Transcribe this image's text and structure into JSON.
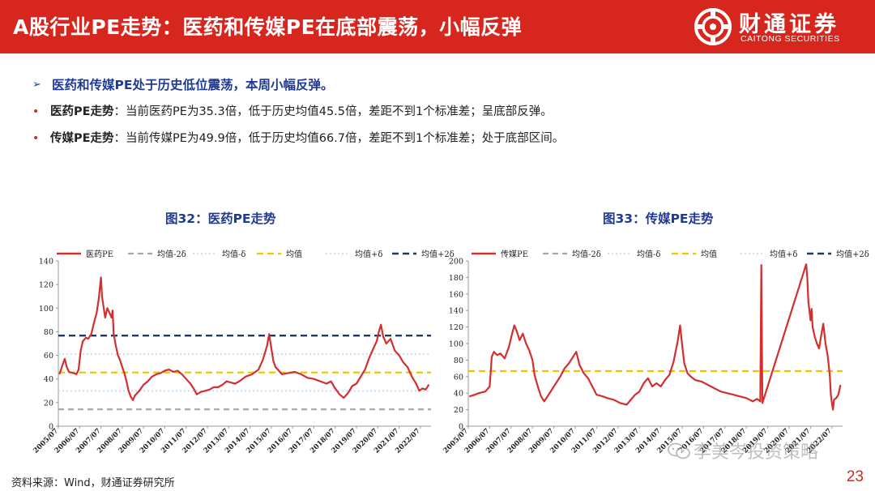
{
  "header": {
    "title": "A股行业PE走势：医药和传媒PE在底部震荡，小幅反弹",
    "logo_cn": "财通证券",
    "logo_en": "CAITONG SECURITIES"
  },
  "bullets": {
    "main": "医药和传媒PE处于历史低位震荡，本周小幅反弹。",
    "items": [
      {
        "keyword": "医药PE走势",
        "text": "：当前医药PE为35.3倍，低于历史均值45.5倍，差距不到1个标准差；呈底部反弹。"
      },
      {
        "keyword": "传媒PE走势",
        "text": "：当前传媒PE为49.9倍，低于历史均值66.7倍，差距不到1个标准差；处于底部区间。"
      }
    ]
  },
  "footer": {
    "source": "资料来源：Wind，财通证券研究所",
    "page": "23"
  },
  "watermark": "李美岑投资策略",
  "colors": {
    "brand_red": "#d7261e",
    "title_blue": "#1f3a93",
    "series": "#d32f2f",
    "minus2": "#a6a6a6",
    "minus1": "#bdd7ee",
    "mean": "#f2c200",
    "plus1": "#bdd7ee",
    "plus2": "#1f3864"
  },
  "chart_data": [
    {
      "type": "line",
      "title": "图32：医药PE走势",
      "legend": [
        "医药PE",
        "均值-2δ",
        "均值-δ",
        "均值",
        "均值+δ",
        "均值+2δ"
      ],
      "legend_position": "top",
      "ylim": [
        0,
        140
      ],
      "yticks": [
        0,
        20,
        40,
        60,
        80,
        100,
        120,
        140
      ],
      "xticks": [
        "2005/07",
        "2006/07",
        "2007/07",
        "2008/07",
        "2009/07",
        "2010/07",
        "2011/07",
        "2012/07",
        "2013/07",
        "2014/07",
        "2015/07",
        "2016/07",
        "2017/07",
        "2018/07",
        "2019/07",
        "2020/07",
        "2021/07",
        "2022/07"
      ],
      "xlim": [
        2005.5,
        2023.0
      ],
      "bands": {
        "mean_minus_2sd": 14.3,
        "mean_minus_sd": 29.9,
        "mean": 45.5,
        "mean_plus_sd": 61.1,
        "mean_plus_2sd": 76.7
      },
      "series": [
        {
          "name": "医药PE",
          "points": [
            [
              2005.55,
              44
            ],
            [
              2005.7,
              52
            ],
            [
              2005.8,
              57
            ],
            [
              2005.9,
              50
            ],
            [
              2006.0,
              46
            ],
            [
              2006.2,
              45
            ],
            [
              2006.35,
              44
            ],
            [
              2006.45,
              48
            ],
            [
              2006.55,
              64
            ],
            [
              2006.65,
              72
            ],
            [
              2006.8,
              75
            ],
            [
              2006.9,
              74
            ],
            [
              2007.05,
              78
            ],
            [
              2007.15,
              86
            ],
            [
              2007.3,
              96
            ],
            [
              2007.4,
              108
            ],
            [
              2007.5,
              126
            ],
            [
              2007.55,
              110
            ],
            [
              2007.6,
              104
            ],
            [
              2007.7,
              92
            ],
            [
              2007.8,
              100
            ],
            [
              2007.9,
              96
            ],
            [
              2008.0,
              92
            ],
            [
              2008.05,
              98
            ],
            [
              2008.1,
              78
            ],
            [
              2008.2,
              68
            ],
            [
              2008.3,
              60
            ],
            [
              2008.4,
              56
            ],
            [
              2008.5,
              50
            ],
            [
              2008.6,
              45
            ],
            [
              2008.7,
              38
            ],
            [
              2008.8,
              30
            ],
            [
              2008.9,
              25
            ],
            [
              2009.0,
              22
            ],
            [
              2009.1,
              26
            ],
            [
              2009.3,
              30
            ],
            [
              2009.5,
              35
            ],
            [
              2009.7,
              38
            ],
            [
              2009.9,
              42
            ],
            [
              2010.1,
              44
            ],
            [
              2010.3,
              45
            ],
            [
              2010.5,
              47
            ],
            [
              2010.7,
              48
            ],
            [
              2010.9,
              46
            ],
            [
              2011.1,
              47
            ],
            [
              2011.3,
              44
            ],
            [
              2011.5,
              40
            ],
            [
              2011.7,
              36
            ],
            [
              2011.85,
              32
            ],
            [
              2012.0,
              27
            ],
            [
              2012.2,
              29
            ],
            [
              2012.4,
              30
            ],
            [
              2012.6,
              31
            ],
            [
              2012.8,
              33
            ],
            [
              2013.0,
              33
            ],
            [
              2013.2,
              35
            ],
            [
              2013.4,
              38
            ],
            [
              2013.6,
              37
            ],
            [
              2013.8,
              36
            ],
            [
              2014.0,
              38
            ],
            [
              2014.3,
              42
            ],
            [
              2014.6,
              44
            ],
            [
              2014.9,
              48
            ],
            [
              2015.1,
              56
            ],
            [
              2015.3,
              68
            ],
            [
              2015.4,
              78
            ],
            [
              2015.5,
              66
            ],
            [
              2015.6,
              55
            ],
            [
              2015.7,
              50
            ],
            [
              2015.85,
              47
            ],
            [
              2016.0,
              44
            ],
            [
              2016.3,
              45
            ],
            [
              2016.6,
              46
            ],
            [
              2016.9,
              44
            ],
            [
              2017.2,
              41
            ],
            [
              2017.5,
              40
            ],
            [
              2017.8,
              38
            ],
            [
              2018.1,
              36
            ],
            [
              2018.3,
              38
            ],
            [
              2018.5,
              32
            ],
            [
              2018.7,
              27
            ],
            [
              2018.9,
              24
            ],
            [
              2019.1,
              28
            ],
            [
              2019.3,
              34
            ],
            [
              2019.5,
              36
            ],
            [
              2019.7,
              42
            ],
            [
              2019.9,
              48
            ],
            [
              2020.1,
              58
            ],
            [
              2020.3,
              66
            ],
            [
              2020.45,
              72
            ],
            [
              2020.55,
              80
            ],
            [
              2020.65,
              86
            ],
            [
              2020.75,
              76
            ],
            [
              2020.9,
              70
            ],
            [
              2021.1,
              74
            ],
            [
              2021.3,
              64
            ],
            [
              2021.5,
              60
            ],
            [
              2021.7,
              54
            ],
            [
              2021.9,
              50
            ],
            [
              2022.1,
              42
            ],
            [
              2022.3,
              36
            ],
            [
              2022.45,
              30
            ],
            [
              2022.6,
              32
            ],
            [
              2022.75,
              31
            ],
            [
              2022.9,
              35.3
            ]
          ]
        }
      ]
    },
    {
      "type": "line",
      "title": "图33：传媒PE走势",
      "legend": [
        "传媒PE",
        "均值-2δ",
        "均值-δ",
        "均值",
        "均值+δ",
        "均值+2δ"
      ],
      "legend_position": "top",
      "ylim": [
        0,
        200
      ],
      "yticks": [
        0,
        20,
        40,
        60,
        80,
        100,
        120,
        140,
        160,
        180,
        200
      ],
      "xticks": [
        "2005/07",
        "2006/07",
        "2007/07",
        "2008/07",
        "2009/07",
        "2010/07",
        "2011/07",
        "2012/07",
        "2013/07",
        "2014/07",
        "2015/07",
        "2016/07",
        "2017/07",
        "2018/07",
        "2019/07",
        "2020/07",
        "2021/07",
        "2022/07"
      ],
      "xlim": [
        2005.5,
        2023.0
      ],
      "bands": {
        "mean": 66.7
      },
      "series": [
        {
          "name": "传媒PE",
          "points": [
            [
              2005.55,
              36
            ],
            [
              2005.8,
              38
            ],
            [
              2006.0,
              40
            ],
            [
              2006.3,
              42
            ],
            [
              2006.5,
              48
            ],
            [
              2006.6,
              84
            ],
            [
              2006.7,
              90
            ],
            [
              2006.85,
              86
            ],
            [
              2007.0,
              88
            ],
            [
              2007.2,
              82
            ],
            [
              2007.4,
              96
            ],
            [
              2007.55,
              112
            ],
            [
              2007.65,
              122
            ],
            [
              2007.75,
              116
            ],
            [
              2007.9,
              104
            ],
            [
              2008.05,
              112
            ],
            [
              2008.2,
              100
            ],
            [
              2008.35,
              92
            ],
            [
              2008.5,
              80
            ],
            [
              2008.6,
              62
            ],
            [
              2008.75,
              48
            ],
            [
              2008.9,
              36
            ],
            [
              2009.05,
              30
            ],
            [
              2009.2,
              36
            ],
            [
              2009.4,
              44
            ],
            [
              2009.6,
              52
            ],
            [
              2009.8,
              60
            ],
            [
              2010.0,
              70
            ],
            [
              2010.2,
              76
            ],
            [
              2010.4,
              84
            ],
            [
              2010.55,
              90
            ],
            [
              2010.7,
              74
            ],
            [
              2010.9,
              64
            ],
            [
              2011.1,
              58
            ],
            [
              2011.3,
              48
            ],
            [
              2011.5,
              38
            ],
            [
              2011.8,
              36
            ],
            [
              2012.0,
              34
            ],
            [
              2012.3,
              32
            ],
            [
              2012.6,
              28
            ],
            [
              2012.9,
              26
            ],
            [
              2013.1,
              32
            ],
            [
              2013.3,
              38
            ],
            [
              2013.5,
              42
            ],
            [
              2013.7,
              52
            ],
            [
              2013.9,
              58
            ],
            [
              2014.1,
              48
            ],
            [
              2014.3,
              52
            ],
            [
              2014.5,
              48
            ],
            [
              2014.7,
              56
            ],
            [
              2014.9,
              62
            ],
            [
              2015.1,
              78
            ],
            [
              2015.3,
              104
            ],
            [
              2015.4,
              122
            ],
            [
              2015.5,
              98
            ],
            [
              2015.6,
              76
            ],
            [
              2015.75,
              64
            ],
            [
              2015.9,
              60
            ],
            [
              2016.1,
              56
            ],
            [
              2016.4,
              54
            ],
            [
              2016.7,
              50
            ],
            [
              2017.0,
              46
            ],
            [
              2017.3,
              42
            ],
            [
              2017.6,
              40
            ],
            [
              2017.9,
              38
            ],
            [
              2018.2,
              36
            ],
            [
              2018.5,
              34
            ],
            [
              2018.8,
              30
            ],
            [
              2019.0,
              33
            ],
            [
              2019.15,
              30
            ],
            [
              2019.2,
              195
            ],
            [
              2019.25,
              28
            ],
            [
              2019.3,
              32
            ],
            [
              2021.3,
              196
            ],
            [
              2021.35,
              180
            ],
            [
              2021.4,
              150
            ],
            [
              2021.45,
              140
            ],
            [
              2021.5,
              128
            ],
            [
              2021.55,
              142
            ],
            [
              2021.6,
              120
            ],
            [
              2021.7,
              108
            ],
            [
              2021.8,
              100
            ],
            [
              2021.9,
              94
            ],
            [
              2022.0,
              110
            ],
            [
              2022.1,
              124
            ],
            [
              2022.2,
              100
            ],
            [
              2022.3,
              86
            ],
            [
              2022.4,
              62
            ],
            [
              2022.45,
              38
            ],
            [
              2022.5,
              28
            ],
            [
              2022.55,
              20
            ],
            [
              2022.6,
              32
            ],
            [
              2022.7,
              34
            ],
            [
              2022.8,
              38
            ],
            [
              2022.9,
              49.9
            ]
          ]
        }
      ]
    }
  ]
}
